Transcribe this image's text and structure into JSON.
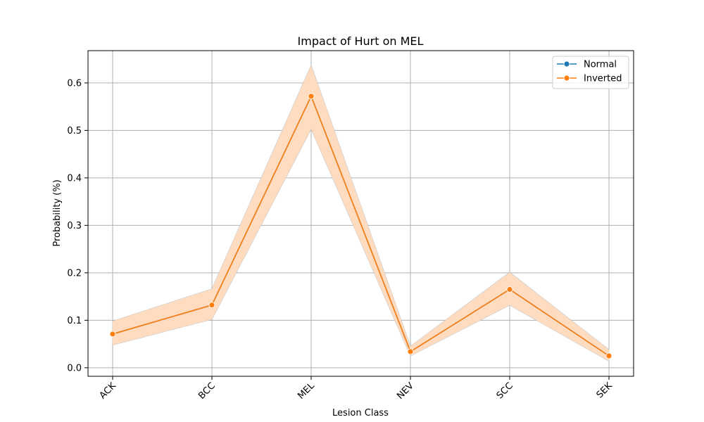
{
  "chart_data": {
    "type": "line",
    "title": "Impact of Hurt on MEL",
    "xlabel": "Lesion Class",
    "ylabel": "Probability (%)",
    "categories": [
      "ACK",
      "BCC",
      "MEL",
      "NEV",
      "SCC",
      "SEK"
    ],
    "ylim": [
      -0.018,
      0.668
    ],
    "yticks": [
      0.0,
      0.1,
      0.2,
      0.3,
      0.4,
      0.5,
      0.6
    ],
    "ytick_labels": [
      "0.0",
      "0.1",
      "0.2",
      "0.3",
      "0.4",
      "0.5",
      "0.6"
    ],
    "grid": true,
    "legend_position": "top-right",
    "series": [
      {
        "name": "Normal",
        "color": "#1f77b4",
        "values": [
          0.071,
          0.132,
          0.572,
          0.034,
          0.165,
          0.025
        ],
        "lower": [
          0.048,
          0.102,
          0.503,
          0.025,
          0.132,
          0.014
        ],
        "upper": [
          0.098,
          0.166,
          0.637,
          0.045,
          0.201,
          0.038
        ]
      },
      {
        "name": "Inverted",
        "color": "#ff7f0e",
        "band_color": "#ffdcc0",
        "values": [
          0.071,
          0.132,
          0.572,
          0.034,
          0.165,
          0.025
        ],
        "lower": [
          0.048,
          0.102,
          0.503,
          0.025,
          0.132,
          0.014
        ],
        "upper": [
          0.098,
          0.166,
          0.637,
          0.045,
          0.201,
          0.038
        ]
      }
    ]
  }
}
